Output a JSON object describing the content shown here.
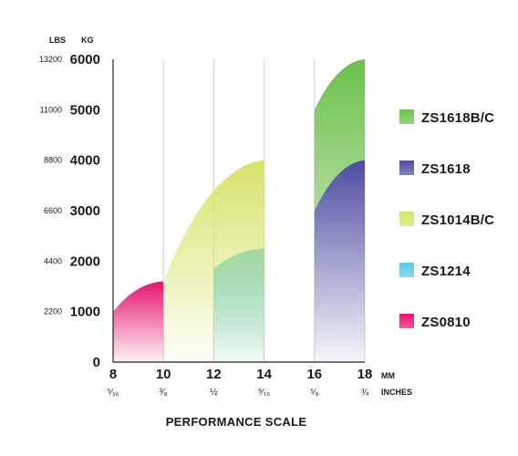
{
  "chart_data": {
    "type": "area",
    "xlabel": "PERFORMANCE SCALE",
    "x_units": [
      "MM",
      "INCHES"
    ],
    "y_units": [
      "LBS",
      "KG"
    ],
    "x_mm": [
      8,
      10,
      12,
      14,
      16,
      18
    ],
    "x_inch_labels": [
      "⁵⁄₁₆",
      "³⁄₈",
      "½",
      "⁹⁄₁₆",
      "⁵⁄₈",
      "¾"
    ],
    "y_kg_ticks": [
      0,
      1000,
      2000,
      3000,
      4000,
      5000,
      6000
    ],
    "y_lbs_ticks": [
      "",
      "2200",
      "4400",
      "6600",
      "8800",
      "11000",
      "13200"
    ],
    "ylim": [
      0,
      6000
    ],
    "xlim": [
      8,
      18
    ],
    "grid": "vertical",
    "legend_position": "right",
    "series": [
      {
        "name": "ZS0810",
        "color": "#e6146e",
        "x": [
          8,
          10
        ],
        "y": [
          1000,
          1600
        ],
        "base": 0
      },
      {
        "name": "ZS1214",
        "color": "#5bc8e6",
        "x": [
          12,
          14
        ],
        "y": [
          1850,
          2250
        ],
        "base": 0
      },
      {
        "name": "ZS1014B/C",
        "color": "#d8e36a",
        "x": [
          10,
          14
        ],
        "y": [
          1600,
          4000
        ],
        "base": 0
      },
      {
        "name": "ZS1618",
        "color": "#4d4da3",
        "x": [
          16,
          18
        ],
        "y": [
          3000,
          4000
        ],
        "base": 0
      },
      {
        "name": "ZS1618B/C",
        "color": "#6cc04a",
        "x": [
          16,
          18
        ],
        "y": [
          5000,
          6000
        ],
        "base_from": "ZS1618"
      }
    ],
    "legend": [
      "ZS1618B/C",
      "ZS1618",
      "ZS1014B/C",
      "ZS1214",
      "ZS0810"
    ]
  }
}
